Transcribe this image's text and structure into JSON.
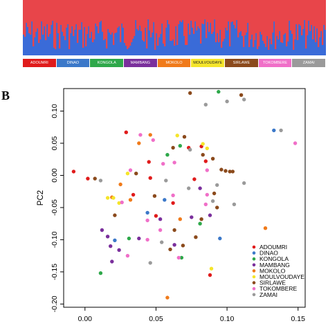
{
  "panel_b_label": "B",
  "admixture_colors": {
    "a": "#e8454a",
    "b": "#3a6bd8"
  },
  "populations": [
    {
      "name": "ADOUMRI",
      "color": "#e01b1b"
    },
    {
      "name": "DINAO",
      "color": "#3b78c9"
    },
    {
      "name": "KONGOLA",
      "color": "#2ea84a"
    },
    {
      "name": "MAMBANG",
      "color": "#7a2f9c"
    },
    {
      "name": "MOKOLO",
      "color": "#f07a1a"
    },
    {
      "name": "MOULVOUDAYE",
      "color": "#f5e52a"
    },
    {
      "name": "SIRLAWE",
      "color": "#8b4a1c"
    },
    {
      "name": "TOKOMBERE",
      "color": "#f06fc8"
    },
    {
      "name": "ZAMAI",
      "color": "#9a9a9a"
    }
  ],
  "chart_data": {
    "type": "scatter",
    "title": "",
    "xlabel": "",
    "ylabel": "PC2",
    "xlim": [
      -0.015,
      0.155
    ],
    "ylim": [
      -0.205,
      0.135
    ],
    "xticks": [
      "0.00",
      "0.05",
      "0.10",
      "0.15"
    ],
    "xtick_values": [
      0.0,
      0.05,
      0.1,
      0.15
    ],
    "yticks": [
      "0.10",
      "0.05",
      "0.00",
      "-0.05",
      "-0.10",
      "-0.15",
      "-0.20"
    ],
    "ytick_values": [
      0.1,
      0.05,
      0.0,
      -0.05,
      -0.1,
      -0.15,
      -0.2
    ],
    "legend_position": "bottom-right",
    "series": [
      {
        "name": "ADOUMRI",
        "color": "#e01b1b",
        "points": [
          [
            -0.008,
            0.006
          ],
          [
            0.002,
            -0.005
          ],
          [
            0.029,
            0.067
          ],
          [
            0.045,
            0.021
          ],
          [
            0.046,
            -0.004
          ],
          [
            0.062,
            -0.043
          ],
          [
            0.073,
            0.043
          ],
          [
            0.077,
            -0.006
          ],
          [
            0.082,
            0.045
          ],
          [
            0.085,
            0.022
          ],
          [
            0.088,
            -0.155
          ],
          [
            0.05,
            -0.063
          ],
          [
            0.034,
            -0.03
          ]
        ]
      },
      {
        "name": "DINAO",
        "color": "#3b78c9",
        "points": [
          [
            0.133,
            0.07
          ],
          [
            0.095,
            -0.098
          ],
          [
            0.056,
            -0.038
          ],
          [
            0.021,
            -0.101
          ],
          [
            0.044,
            -0.058
          ]
        ]
      },
      {
        "name": "KONGOLA",
        "color": "#2ea84a",
        "points": [
          [
            0.094,
            0.13
          ],
          [
            0.058,
            0.032
          ],
          [
            0.067,
            0.046
          ],
          [
            0.011,
            -0.152
          ],
          [
            0.068,
            -0.128
          ],
          [
            0.031,
            -0.098
          ],
          [
            0.081,
            -0.075
          ]
        ]
      },
      {
        "name": "MAMBANG",
        "color": "#7a2f9c",
        "points": [
          [
            0.012,
            -0.085
          ],
          [
            0.018,
            -0.11
          ],
          [
            0.024,
            -0.116
          ],
          [
            0.038,
            -0.098
          ],
          [
            0.053,
            -0.068
          ],
          [
            0.063,
            -0.108
          ],
          [
            0.075,
            -0.065
          ],
          [
            0.081,
            -0.02
          ],
          [
            0.088,
            -0.062
          ],
          [
            0.019,
            -0.134
          ],
          [
            0.016,
            -0.095
          ]
        ]
      },
      {
        "name": "MOKOLO",
        "color": "#f07a1a",
        "points": [
          [
            0.127,
            -0.082
          ],
          [
            0.058,
            -0.19
          ],
          [
            0.032,
            -0.038
          ],
          [
            0.025,
            -0.014
          ],
          [
            0.046,
            0.063
          ],
          [
            0.038,
            0.05
          ],
          [
            0.067,
            -0.068
          ],
          [
            0.019,
            -0.034
          ]
        ]
      },
      {
        "name": "MOULVOUDAYE",
        "color": "#f5e52a",
        "points": [
          [
            0.016,
            -0.035
          ],
          [
            0.02,
            -0.035
          ],
          [
            0.024,
            -0.043
          ],
          [
            0.03,
            0.003
          ],
          [
            0.083,
            0.049
          ],
          [
            0.086,
            0.042
          ],
          [
            0.089,
            -0.145
          ],
          [
            0.065,
            0.062
          ]
        ]
      },
      {
        "name": "SIRLAWE",
        "color": "#8b4a1c",
        "points": [
          [
            0.074,
            0.128
          ],
          [
            0.07,
            0.06
          ],
          [
            0.083,
            0.032
          ],
          [
            0.09,
            0.026
          ],
          [
            0.096,
            0.009
          ],
          [
            0.099,
            0.007
          ],
          [
            0.102,
            0.006
          ],
          [
            0.104,
            0.006
          ],
          [
            0.11,
            0.125
          ],
          [
            0.007,
            -0.005
          ],
          [
            0.021,
            -0.062
          ],
          [
            0.049,
            -0.032
          ],
          [
            0.062,
            0.043
          ],
          [
            0.063,
            -0.085
          ],
          [
            0.036,
            0.003
          ],
          [
            0.06,
            -0.115
          ],
          [
            0.069,
            -0.109
          ],
          [
            0.091,
            -0.028
          ],
          [
            0.093,
            -0.05
          ],
          [
            0.078,
            -0.096
          ],
          [
            0.082,
            -0.068
          ]
        ]
      },
      {
        "name": "TOKOMBERE",
        "color": "#f06fc8",
        "points": [
          [
            0.148,
            0.05
          ],
          [
            0.039,
            0.063
          ],
          [
            0.048,
            0.055
          ],
          [
            0.055,
            0.018
          ],
          [
            0.063,
            0.02
          ],
          [
            0.032,
            0.008
          ],
          [
            0.03,
            -0.125
          ],
          [
            0.053,
            -0.085
          ],
          [
            0.066,
            -0.128
          ],
          [
            0.086,
            0.008
          ],
          [
            0.044,
            -0.07
          ],
          [
            0.085,
            -0.045
          ],
          [
            0.062,
            -0.031
          ],
          [
            0.086,
            -0.03
          ],
          [
            0.026,
            -0.042
          ],
          [
            0.044,
            -0.1
          ]
        ]
      },
      {
        "name": "ZAMAI",
        "color": "#9a9a9a",
        "points": [
          [
            0.138,
            0.07
          ],
          [
            0.1,
            0.115
          ],
          [
            0.085,
            0.11
          ],
          [
            0.112,
            0.118
          ],
          [
            0.105,
            -0.045
          ],
          [
            0.093,
            -0.015
          ],
          [
            0.112,
            -0.012
          ],
          [
            0.011,
            -0.008
          ],
          [
            0.046,
            -0.136
          ],
          [
            0.054,
            -0.104
          ],
          [
            0.073,
            -0.02
          ],
          [
            0.09,
            -0.04
          ],
          [
            0.057,
            -0.008
          ],
          [
            0.074,
            0.04
          ]
        ]
      }
    ]
  }
}
